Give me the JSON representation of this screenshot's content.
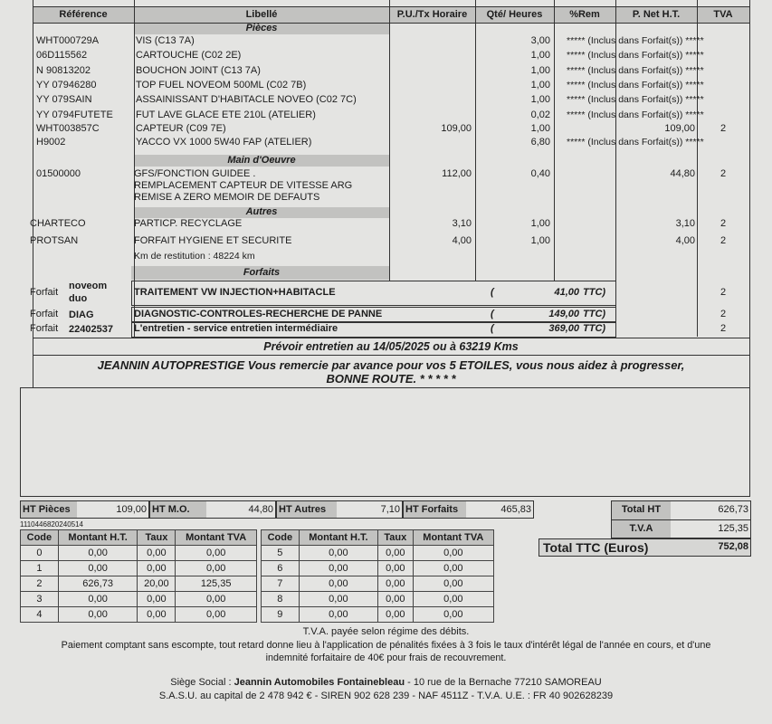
{
  "headers": {
    "reference": "Référence",
    "libelle": "Libellé",
    "pu": "P.U./Tx Horaire",
    "qte": "Qté/ Heures",
    "rem": "%Rem",
    "pnet": "P. Net H.T.",
    "tva": "TVA"
  },
  "sections": {
    "pieces": "Pièces",
    "main_oeuvre": "Main d'Oeuvre",
    "autres": "Autres",
    "forfaits": "Forfaits"
  },
  "included_text": "***** (Inclus dans Forfait(s)) *****",
  "pieces": [
    {
      "ref": "WHT000729A",
      "label": "VIS (C13 7A)",
      "pu": "",
      "qte": "3,00",
      "pnet": "",
      "tva": "",
      "included": true
    },
    {
      "ref": "06D115562",
      "label": "CARTOUCHE (C02 2E)",
      "pu": "",
      "qte": "1,00",
      "pnet": "",
      "tva": "",
      "included": true
    },
    {
      "ref": "N  90813202",
      "label": "BOUCHON JOINT (C13 7A)",
      "pu": "",
      "qte": "1,00",
      "pnet": "",
      "tva": "",
      "included": true
    },
    {
      "ref": "YY 07946280",
      "label": "TOP FUEL NOVEOM 500ML (C02 7B)",
      "pu": "",
      "qte": "1,00",
      "pnet": "",
      "tva": "",
      "included": true
    },
    {
      "ref": "YY 079SAIN",
      "label": "ASSAINISSANT D'HABITACLE NOVEO (C02 7C)",
      "pu": "",
      "qte": "1,00",
      "pnet": "",
      "tva": "",
      "included": true
    },
    {
      "ref": "YY 0794FUTETE",
      "label": "FUT LAVE GLACE ETE 210L (ATELIER)",
      "pu": "",
      "qte": "0,02",
      "pnet": "",
      "tva": "",
      "included": true
    },
    {
      "ref": "WHT003857C",
      "label": "CAPTEUR (C09 7E)",
      "pu": "109,00",
      "qte": "1,00",
      "pnet": "109,00",
      "tva": "2",
      "included": false
    },
    {
      "ref": "H9002",
      "label": "YACCO VX 1000 5W40 FAP (ATELIER)",
      "pu": "",
      "qte": "6,80",
      "pnet": "",
      "tva": "",
      "included": true
    }
  ],
  "main_oeuvre": {
    "ref": "01500000",
    "lines": [
      "GFS/FONCTION GUIDEE .",
      "REMPLACEMENT CAPTEUR DE VITESSE ARG",
      "REMISE A ZERO MEMOIR DE DEFAUTS"
    ],
    "pu": "112,00",
    "qte": "0,40",
    "pnet": "44,80",
    "tva": "2"
  },
  "autres": [
    {
      "ref": "CHARTECO",
      "label": "PARTICP.  RECYCLAGE",
      "pu": "3,10",
      "qte": "1,00",
      "pnet": "3,10",
      "tva": "2"
    },
    {
      "ref": "PROTSAN",
      "label": "FORFAIT HYGIENE ET SECURITE",
      "pu": "4,00",
      "qte": "1,00",
      "pnet": "4,00",
      "tva": "2"
    }
  ],
  "km_restitution": "Km de restitution : 48224 km",
  "forfaits": [
    {
      "prefix": "Forfait",
      "code": "noveom duo",
      "label": "TRAITEMENT VW  INJECTION+HABITACLE",
      "amount": "41,00",
      "tva": "2"
    },
    {
      "prefix": "Forfait",
      "code": "DIAG",
      "label": "DIAGNOSTIC-CONTROLES-RECHERCHE DE PANNE",
      "amount": "149,00",
      "tva": "2"
    },
    {
      "prefix": "Forfait",
      "code": "22402537",
      "label": "L'entretien - service entretien intermédiaire",
      "amount": "369,00",
      "tva": "2"
    }
  ],
  "forfait_open": "(",
  "forfait_close": "TTC)",
  "prevoir": "Prévoir entretien  au 14/05/2025 ou à 63219 Kms",
  "message": [
    "JEANNIN AUTOPRESTIGE Vous remercie par avance pour vos 5 ETOILES,  vous nous aidez à progresser,",
    "BONNE ROUTE. * * * * *"
  ],
  "subtotals": [
    {
      "label": "HT Pièces",
      "value": "109,00"
    },
    {
      "label": "HT M.O.",
      "value": "44,80"
    },
    {
      "label": "HT Autres",
      "value": "7,10"
    },
    {
      "label": "HT Forfaits",
      "value": "465,83"
    }
  ],
  "totals": {
    "total_ht_label": "Total HT",
    "total_ht": "626,73",
    "tva_label": "T.V.A",
    "tva": "125,35",
    "ttc_label": "Total TTC (Euros)",
    "ttc": "752,08"
  },
  "doc_number": "1110446820240514",
  "vat_table_headers": [
    "Code",
    "Montant H.T.",
    "Taux",
    "Montant TVA"
  ],
  "vat_rows": [
    [
      "0",
      "0,00",
      "0,00",
      "0,00"
    ],
    [
      "1",
      "0,00",
      "0,00",
      "0,00"
    ],
    [
      "2",
      "626,73",
      "20,00",
      "125,35"
    ],
    [
      "3",
      "0,00",
      "0,00",
      "0,00"
    ],
    [
      "4",
      "0,00",
      "0,00",
      "0,00"
    ],
    [
      "5",
      "0,00",
      "0,00",
      "0,00"
    ],
    [
      "6",
      "0,00",
      "0,00",
      "0,00"
    ],
    [
      "7",
      "0,00",
      "0,00",
      "0,00"
    ],
    [
      "8",
      "0,00",
      "0,00",
      "0,00"
    ],
    [
      "9",
      "0,00",
      "0,00",
      "0,00"
    ]
  ],
  "footer": {
    "tva_note": "T.V.A. payée selon régime des débits.",
    "payment": [
      "Paiement comptant sans escompte, tout retard donne lieu à l'application de pénalités fixées à 3 fois le taux d'intérêt légal de l'année en cours, et d'une",
      "indemnité forfaitaire de 40€ pour frais de recouvrement."
    ],
    "siege_prefix": "Siège Social : ",
    "siege_name": "Jeannin Automobiles Fontainebleau",
    "siege_address": " - 10 rue de la Bernache 77210 SAMOREAU",
    "legal": "S.A.S.U. au capital de 2 478 942 € - SIREN 902 628 239 - NAF 4511Z - T.V.A. U.E. : FR 40 902628239"
  }
}
